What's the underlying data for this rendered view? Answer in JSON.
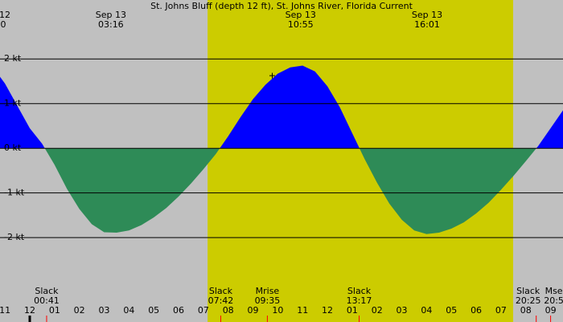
{
  "chart_data": {
    "type": "area",
    "title": "St. Johns Bluff (depth 12 ft), St. Johns River, Florida Current",
    "corner_labels": [
      "12",
      "0"
    ],
    "peaks": [
      {
        "date": "Sep 13",
        "time": "03:16",
        "x": 3.27
      },
      {
        "date": "Sep 13",
        "time": "10:55",
        "x": 10.92
      },
      {
        "date": "Sep 13",
        "time": "16:01",
        "x": 16.02
      }
    ],
    "events": [
      {
        "label": "Slack",
        "time": "00:41",
        "x": 0.68
      },
      {
        "label": "Slack",
        "time": "07:42",
        "x": 7.7
      },
      {
        "label": "Mrise",
        "time": "09:35",
        "x": 9.58
      },
      {
        "label": "Slack",
        "time": "13:17",
        "x": 13.28
      },
      {
        "label": "Slack",
        "time": "20:25",
        "x": 20.42
      },
      {
        "label": "Mse",
        "time": "20:5",
        "x": 21.0
      }
    ],
    "daylight": [
      7.17,
      19.49
    ],
    "x": [
      -1.2,
      -1,
      -0.5,
      0,
      0.5,
      1,
      1.5,
      2,
      2.5,
      3,
      3.5,
      4,
      4.5,
      5,
      5.5,
      6,
      6.5,
      7,
      7.5,
      8,
      8.5,
      9,
      9.5,
      10,
      10.5,
      11,
      11.5,
      12,
      12.5,
      13,
      13.5,
      14,
      14.5,
      15,
      15.5,
      16,
      16.5,
      17,
      17.5,
      18,
      18.5,
      19,
      19.5,
      20,
      20.5,
      21,
      21.5
    ],
    "series": [
      {
        "name": "Current",
        "flood_color": "#0000ff",
        "ebb_color": "#2e8b57",
        "values": [
          1.6,
          1.45,
          0.95,
          0.45,
          0.1,
          -0.37,
          -0.91,
          -1.36,
          -1.7,
          -1.88,
          -1.89,
          -1.84,
          -1.72,
          -1.55,
          -1.34,
          -1.08,
          -0.79,
          -0.47,
          -0.13,
          0.27,
          0.7,
          1.1,
          1.42,
          1.67,
          1.81,
          1.85,
          1.72,
          1.39,
          0.92,
          0.34,
          -0.24,
          -0.77,
          -1.24,
          -1.6,
          -1.84,
          -1.92,
          -1.89,
          -1.8,
          -1.66,
          -1.46,
          -1.22,
          -0.93,
          -0.62,
          -0.29,
          0.05,
          0.45,
          0.85
        ]
      }
    ],
    "xlim": [
      -1.2,
      21.5
    ],
    "ylim": [
      -3.89,
      3.32
    ],
    "yticks": [
      {
        "value": 2,
        "label": "2 kt"
      },
      {
        "value": 1,
        "label": "1 kt"
      },
      {
        "value": 0,
        "label": "0 kt"
      },
      {
        "value": -1,
        "label": "-1 kt"
      },
      {
        "value": -2,
        "label": "-2 kt"
      }
    ],
    "xticks": [
      {
        "value": -1,
        "label": "11"
      },
      {
        "value": 0,
        "label": "12"
      },
      {
        "value": 1,
        "label": "01"
      },
      {
        "value": 2,
        "label": "02"
      },
      {
        "value": 3,
        "label": "03"
      },
      {
        "value": 4,
        "label": "04"
      },
      {
        "value": 5,
        "label": "05"
      },
      {
        "value": 6,
        "label": "06"
      },
      {
        "value": 7,
        "label": "07"
      },
      {
        "value": 8,
        "label": "08"
      },
      {
        "value": 9,
        "label": "09"
      },
      {
        "value": 10,
        "label": "10"
      },
      {
        "value": 11,
        "label": "11"
      },
      {
        "value": 12,
        "label": "12"
      },
      {
        "value": 13,
        "label": "01"
      },
      {
        "value": 14,
        "label": "02"
      },
      {
        "value": 15,
        "label": "03"
      },
      {
        "value": 16,
        "label": "04"
      },
      {
        "value": 17,
        "label": "05"
      },
      {
        "value": 18,
        "label": "06"
      },
      {
        "value": 19,
        "label": "07"
      },
      {
        "value": 20,
        "label": "08"
      },
      {
        "value": 21,
        "label": "09"
      }
    ],
    "grid": true,
    "background": "#c0c0c0",
    "daylight_color": "#cccc00"
  }
}
